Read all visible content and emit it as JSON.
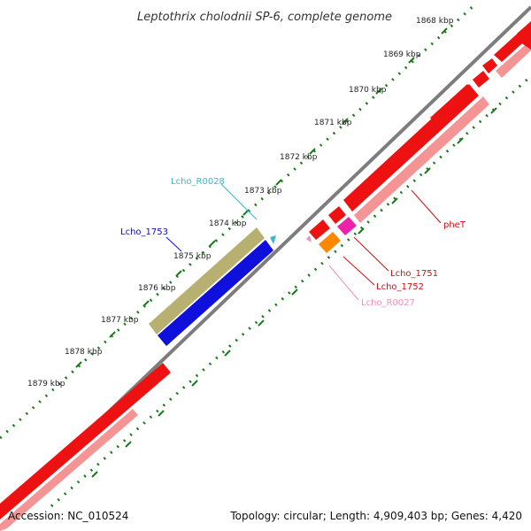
{
  "title": "Leptothrix cholodnii SP-6, complete genome",
  "accession": "Accession: NC_010524",
  "topology": "Topology: circular; Length: 4,909,403 bp; Genes: 4,420",
  "ticks": [
    "1868 kbp",
    "1869 kbp",
    "1870 kbp",
    "1871 kbp",
    "1872 kbp",
    "1873 kbp",
    "1874 kbp",
    "1875 kbp",
    "1876 kbp",
    "1877 kbp",
    "1878 kbp",
    "1879 kbp"
  ],
  "gene_labels": {
    "lcho_r0028": "Lcho_R0028",
    "lcho_1753": "Lcho_1753",
    "phet": "pheT",
    "lcho_1751": "Lcho_1751",
    "lcho_1752": "Lcho_1752",
    "lcho_r0027": "Lcho_R0027"
  },
  "colors": {
    "backbone": "#7f7c80",
    "cds": "#ee1111",
    "cds_light": "#f49494",
    "olive": "#b8b070",
    "blue": "#1010dd",
    "cyan": "#33bbcc",
    "orange": "#ff8800",
    "magenta": "#ee22aa",
    "pink": "#f08cc0",
    "dots": "#1a7a1a"
  }
}
